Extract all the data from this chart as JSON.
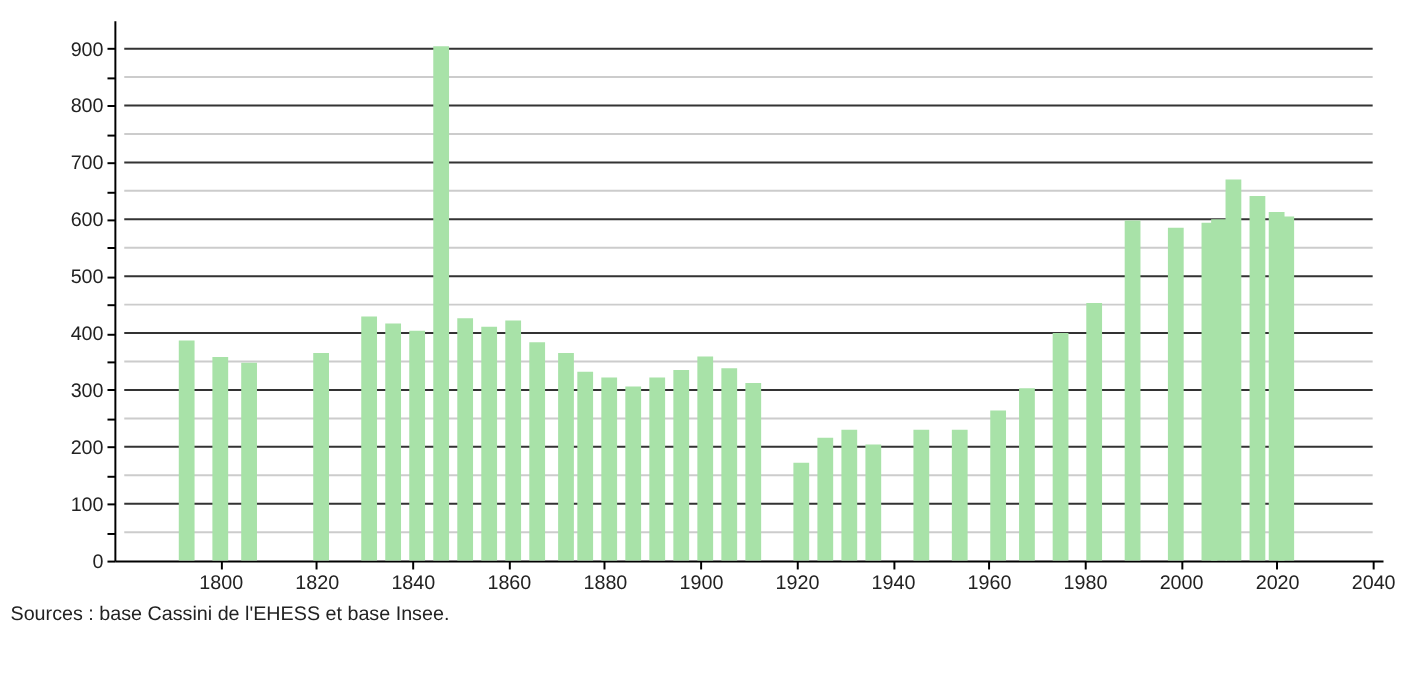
{
  "chart_data": {
    "type": "bar",
    "x": [
      1793,
      1800,
      1806,
      1821,
      1831,
      1836,
      1841,
      1846,
      1851,
      1856,
      1861,
      1866,
      1872,
      1876,
      1881,
      1886,
      1891,
      1896,
      1901,
      1906,
      1911,
      1921,
      1926,
      1931,
      1936,
      1946,
      1954,
      1962,
      1968,
      1975,
      1982,
      1990,
      1999,
      2006,
      2008,
      2011,
      2016,
      2020,
      2022
    ],
    "values": [
      387,
      358,
      348,
      365,
      429,
      417,
      404,
      904,
      426,
      411,
      422,
      384,
      365,
      332,
      322,
      306,
      322,
      335,
      359,
      338,
      312,
      172,
      216,
      230,
      204,
      230,
      230,
      264,
      303,
      400,
      453,
      598,
      585,
      594,
      600,
      670,
      641,
      613,
      605
    ],
    "color": "#a8e2a8",
    "xlim": [
      1780,
      2040
    ],
    "xticks": [
      1800,
      1820,
      1840,
      1860,
      1880,
      1900,
      1920,
      1940,
      1960,
      1980,
      2000,
      2020,
      2040
    ],
    "ylim": [
      0,
      950
    ],
    "yticks": [
      0,
      {
        "value": 50,
        "label": null
      },
      100,
      {
        "value": 150,
        "label": null
      },
      200,
      {
        "value": 250,
        "label": null
      },
      300,
      {
        "value": 350,
        "label": null
      },
      400,
      {
        "value": 450,
        "label": null
      },
      500,
      {
        "value": 550,
        "label": null
      },
      600,
      {
        "value": 650,
        "label": null
      },
      700,
      {
        "value": 750,
        "label": null
      },
      800,
      {
        "value": 850,
        "label": null
      },
      900
    ],
    "grid": true,
    "annotations": [
      "Sources : base Cassini de l'EHESS et base Insee."
    ]
  }
}
